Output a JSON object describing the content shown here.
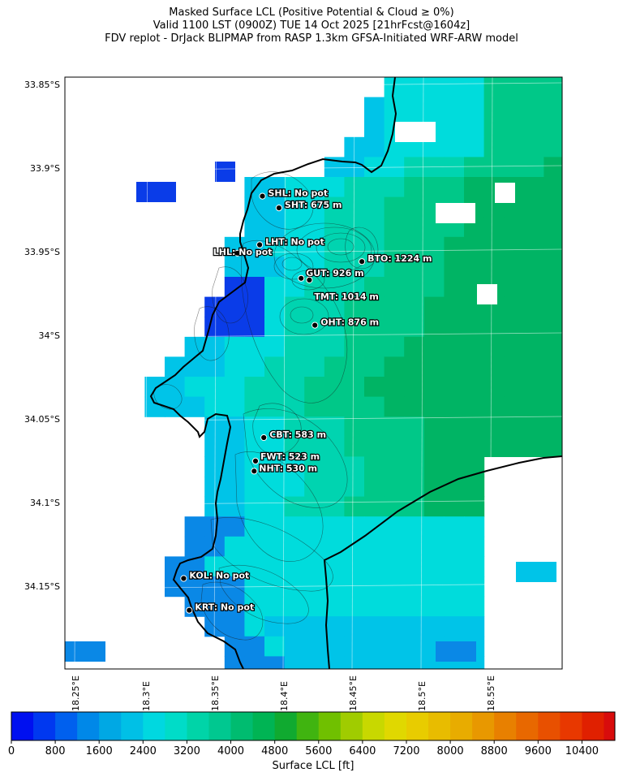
{
  "title": {
    "line1": "Masked Surface LCL (Positive Potential & Cloud ≥ 0%)",
    "line2": "Valid 1100 LST (0900Z) TUE 14 Oct 2025 [21hrFcst@1604z]",
    "line3": "FDV replot - DrJack BLIPMAP from RASP 1.3km GFSA-Initiated WRF-ARW model"
  },
  "map": {
    "lat_ticks": [
      "33.85°S",
      "33.9°S",
      "33.95°S",
      "34°S",
      "34.05°S",
      "34.1°S",
      "34.15°S"
    ],
    "lon_ticks": [
      "18.25°E",
      "18.3°E",
      "18.35°E",
      "18.4°E",
      "18.45°E",
      "18.5°E",
      "18.55°E"
    ],
    "lat_range": [
      33.837,
      34.19
    ],
    "lon_range": [
      18.205,
      18.565
    ]
  },
  "stations": [
    {
      "code": "SHL",
      "text": "SHL: No pot",
      "lon": 18.348,
      "lat": 33.908
    },
    {
      "code": "SHT",
      "text": "SHT: 675 m",
      "lon": 18.36,
      "lat": 33.915
    },
    {
      "code": "LHT",
      "text": "LHT: No pot",
      "lon": 18.346,
      "lat": 33.937
    },
    {
      "code": "LHL",
      "text": "LHL: No pot",
      "lon": 18.33,
      "lat": 33.942
    },
    {
      "code": "BTO",
      "text": "BTO: 1224 m",
      "lon": 18.42,
      "lat": 33.947
    },
    {
      "code": "GUT",
      "text": "GUT: 926 m",
      "lon": 18.376,
      "lat": 33.957
    },
    {
      "code": "TMT",
      "text": "TMT: 1014 m",
      "lon": 18.382,
      "lat": 33.958
    },
    {
      "code": "OHT",
      "text": "OHT: 876 m",
      "lon": 18.386,
      "lat": 33.985
    },
    {
      "code": "CBT",
      "text": "CBT: 583 m",
      "lon": 18.349,
      "lat": 34.052
    },
    {
      "code": "FWT",
      "text": "FWT: 523 m",
      "lon": 18.343,
      "lat": 34.066
    },
    {
      "code": "NHT",
      "text": "NHT: 530 m",
      "lon": 18.342,
      "lat": 34.072
    },
    {
      "code": "KOL",
      "text": "KOL: No pot",
      "lon": 18.291,
      "lat": 34.136
    },
    {
      "code": "KRT",
      "text": "KRT: No pot",
      "lon": 18.295,
      "lat": 34.155
    }
  ],
  "colorbar": {
    "label": "Surface LCL [ft]",
    "ticks": [
      "0",
      "800",
      "1600",
      "2400",
      "3200",
      "4000",
      "4800",
      "5600",
      "6400",
      "7200",
      "8000",
      "8800",
      "9600",
      "10400"
    ],
    "range": [
      0,
      11000
    ],
    "step": 400,
    "colors": [
      "#0010f0",
      "#0038f0",
      "#0060ee",
      "#0088e8",
      "#00a8e4",
      "#00c0e6",
      "#00d8e0",
      "#00dcc8",
      "#00d4a8",
      "#00c890",
      "#00bc70",
      "#00b454",
      "#10aa30",
      "#40b410",
      "#70c000",
      "#a0cc00",
      "#c8d800",
      "#e0d800",
      "#e8cc00",
      "#e8bc00",
      "#e8ac00",
      "#e89800",
      "#e88000",
      "#e86800",
      "#e85000",
      "#e83800",
      "#e02000",
      "#d80c0c",
      "#c00030"
    ]
  },
  "field_colors": {
    "blue_dark": "#0a3ce8",
    "blue": "#0a88e6",
    "cyan": "#00c4e8",
    "cyan_light": "#00dcdc",
    "teal": "#00d4b0",
    "green_light": "#00c888",
    "green": "#00b464"
  }
}
